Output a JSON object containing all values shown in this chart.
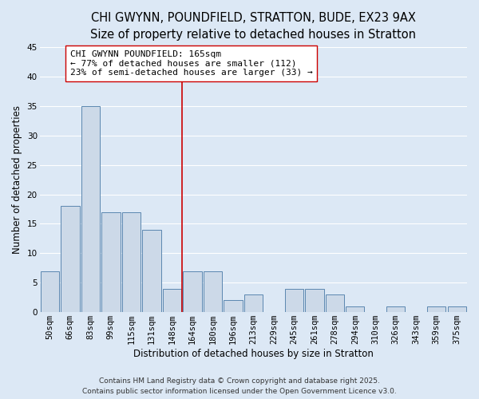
{
  "title": "CHI GWYNN, POUNDFIELD, STRATTON, BUDE, EX23 9AX",
  "subtitle": "Size of property relative to detached houses in Stratton",
  "xlabel": "Distribution of detached houses by size in Stratton",
  "ylabel": "Number of detached properties",
  "bar_labels": [
    "50sqm",
    "66sqm",
    "83sqm",
    "99sqm",
    "115sqm",
    "131sqm",
    "148sqm",
    "164sqm",
    "180sqm",
    "196sqm",
    "213sqm",
    "229sqm",
    "245sqm",
    "261sqm",
    "278sqm",
    "294sqm",
    "310sqm",
    "326sqm",
    "343sqm",
    "359sqm",
    "375sqm"
  ],
  "bar_values": [
    7,
    18,
    35,
    17,
    17,
    14,
    4,
    7,
    7,
    2,
    3,
    0,
    4,
    4,
    3,
    1,
    0,
    1,
    0,
    1,
    1
  ],
  "bar_color": "#ccd9e8",
  "bar_edge_color": "#5b87b0",
  "background_color": "#dce8f5",
  "grid_color": "#ffffff",
  "vline_x_index": 7,
  "vline_color": "#cc0000",
  "annotation_line1": "CHI GWYNN POUNDFIELD: 165sqm",
  "annotation_line2": "← 77% of detached houses are smaller (112)",
  "annotation_line3": "23% of semi-detached houses are larger (33) →",
  "annotation_box_color": "#ffffff",
  "annotation_box_edge_color": "#cc0000",
  "ylim": [
    0,
    45
  ],
  "yticks": [
    0,
    5,
    10,
    15,
    20,
    25,
    30,
    35,
    40,
    45
  ],
  "footer_line1": "Contains HM Land Registry data © Crown copyright and database right 2025.",
  "footer_line2": "Contains public sector information licensed under the Open Government Licence v3.0.",
  "title_fontsize": 10.5,
  "subtitle_fontsize": 9.5,
  "axis_label_fontsize": 8.5,
  "tick_fontsize": 7.5,
  "annotation_fontsize": 8,
  "footer_fontsize": 6.5
}
